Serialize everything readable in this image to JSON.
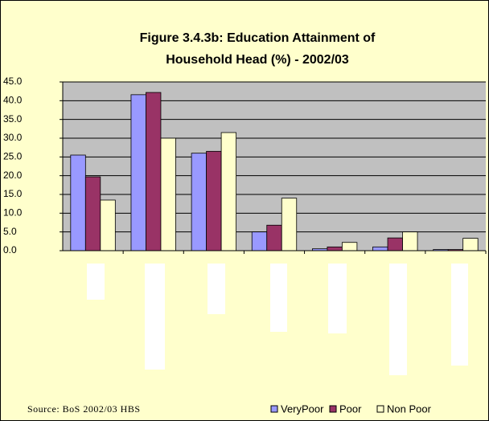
{
  "chart_data": {
    "type": "bar",
    "title": [
      "Figure 3.4.3b: Education Attainment of",
      "Household Head (%) - 2002/03"
    ],
    "categories": [
      null,
      null,
      null,
      null,
      null,
      null,
      null
    ],
    "series": [
      {
        "name": "VeryPoor",
        "color": "#9999ff",
        "values": [
          25.5,
          41.6,
          26.0,
          5.0,
          0.5,
          1.0,
          0.3
        ]
      },
      {
        "name": "Poor",
        "color": "#993366",
        "values": [
          19.7,
          42.2,
          26.5,
          6.8,
          1.0,
          3.4,
          0.3
        ]
      },
      {
        "name": "Non Poor",
        "color": "#ffffcc",
        "values": [
          13.5,
          30.0,
          31.5,
          14.0,
          2.2,
          5.0,
          3.3
        ]
      }
    ],
    "ylim": [
      0,
      45
    ],
    "yticks": [
      {
        "value": 0,
        "label": "0.0"
      },
      {
        "value": 5,
        "label": "5.0"
      },
      {
        "value": 10,
        "label": "10.0"
      },
      {
        "value": 15,
        "label": "15.0"
      },
      {
        "value": 20,
        "label": "20.0"
      },
      {
        "value": 25,
        "label": "25.0"
      },
      {
        "value": 30,
        "label": "30.0"
      },
      {
        "value": 35,
        "label": "35.0"
      },
      {
        "value": 40,
        "label": "40.0"
      },
      {
        "value": 45,
        "label": "45.0"
      }
    ],
    "grid": true,
    "source": "Source: BoS 2002/03 HBS",
    "legend": "bottom-right"
  }
}
